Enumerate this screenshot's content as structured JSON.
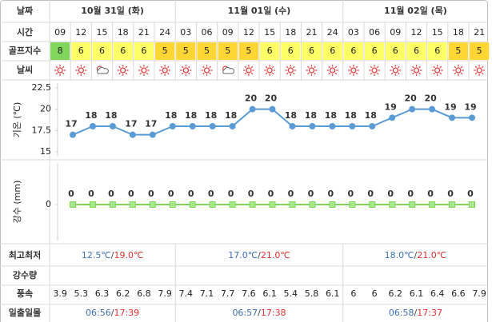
{
  "table": {
    "row_labels": {
      "date": "날짜",
      "time": "시간",
      "golf_index": "골프지수",
      "weather": "날씨"
    },
    "dates": [
      "10월 31일 (화)",
      "11월 01일 (수)",
      "11월 02일 (목)"
    ],
    "times": [
      "09",
      "12",
      "15",
      "18",
      "21",
      "24",
      "03",
      "06",
      "09",
      "12",
      "15",
      "18",
      "21",
      "24",
      "03",
      "06",
      "09",
      "12",
      "15",
      "18",
      "21"
    ],
    "golf_index": [
      8,
      6,
      6,
      6,
      6,
      5,
      5,
      5,
      5,
      5,
      6,
      6,
      6,
      6,
      6,
      6,
      6,
      6,
      6,
      5,
      5
    ],
    "golf_index_colors": {
      "8": "#7fd65a",
      "6": "#ffff66",
      "5": "#ffd633"
    }
  },
  "chart_data": [
    {
      "type": "line",
      "y_label": "기온 (℃)",
      "ylim": [
        15,
        22.5
      ],
      "yticks": [
        22.5,
        20,
        17.5,
        15
      ],
      "series": [
        {
          "color": "#5b9bd5",
          "values": [
            17,
            18,
            18,
            17,
            17,
            18,
            18,
            18,
            18,
            20,
            20,
            18,
            18,
            18,
            18,
            18,
            19,
            20,
            20,
            19,
            19
          ]
        }
      ]
    },
    {
      "type": "line",
      "y_label": "강수 (mm)",
      "ylim": [
        -1,
        1
      ],
      "yticks": [
        0
      ],
      "series": [
        {
          "color": "#7fd65a",
          "values": [
            0,
            0,
            0,
            0,
            0,
            0,
            0,
            0,
            0,
            0,
            0,
            0,
            0,
            0,
            0,
            0,
            0,
            0,
            0,
            0,
            0
          ]
        }
      ]
    }
  ],
  "summary": {
    "row_labels": {
      "high_low": "최고최저",
      "rain": "강수량",
      "wind": "풍속",
      "sun": "일출일몰"
    },
    "high_low": [
      [
        "12.5℃",
        "/",
        "19.0℃"
      ],
      [
        "17.0℃",
        "/",
        "21.0℃"
      ],
      [
        "18.0℃",
        "/",
        "21.0℃"
      ]
    ],
    "wind": [
      3.9,
      5.3,
      6.3,
      6.2,
      6.8,
      7.9,
      7.4,
      7.1,
      7.7,
      7.6,
      6.1,
      5.4,
      5.8,
      6.1,
      6.0,
      6.0,
      6.2,
      6.1,
      6.4,
      6.6,
      7.9
    ],
    "sun": [
      [
        "06:56",
        "/",
        "17:39"
      ],
      [
        "06:57",
        "/",
        "17:38"
      ],
      [
        "06:58",
        "/",
        "17:37"
      ]
    ],
    "low_color": "#3a6fb7",
    "high_color": "#e03030"
  }
}
